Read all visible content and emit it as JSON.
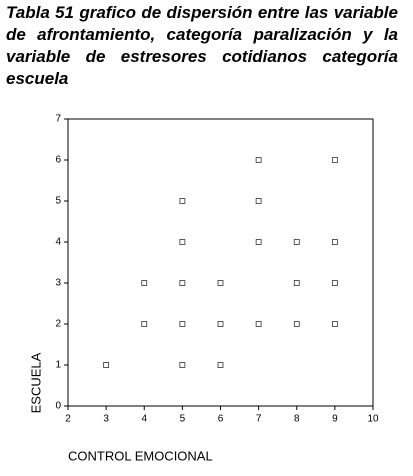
{
  "chart_data": {
    "type": "scatter",
    "title": "Tabla 51 grafico de dispersión entre las variable de afrontamiento, categoría paralización y la variable de estresores cotidianos categoría escuela",
    "x_label": "CONTROL EMOCIONAL",
    "y_label": "ESCUELA",
    "x": [
      3,
      4,
      4,
      5,
      5,
      5,
      5,
      5,
      6,
      6,
      6,
      7,
      7,
      7,
      7,
      8,
      8,
      8,
      9,
      9,
      9,
      9
    ],
    "values": [
      1,
      2,
      3,
      1,
      2,
      3,
      4,
      5,
      1,
      2,
      3,
      2,
      4,
      5,
      6,
      2,
      3,
      4,
      2,
      3,
      4,
      6
    ],
    "color": "#333333",
    "xlim": [
      2,
      10
    ],
    "xticks": [
      2,
      3,
      4,
      5,
      6,
      7,
      8,
      9,
      10
    ],
    "ylim": [
      0,
      7
    ],
    "yticks": [
      0,
      1,
      2,
      3,
      4,
      5,
      6,
      7
    ]
  }
}
